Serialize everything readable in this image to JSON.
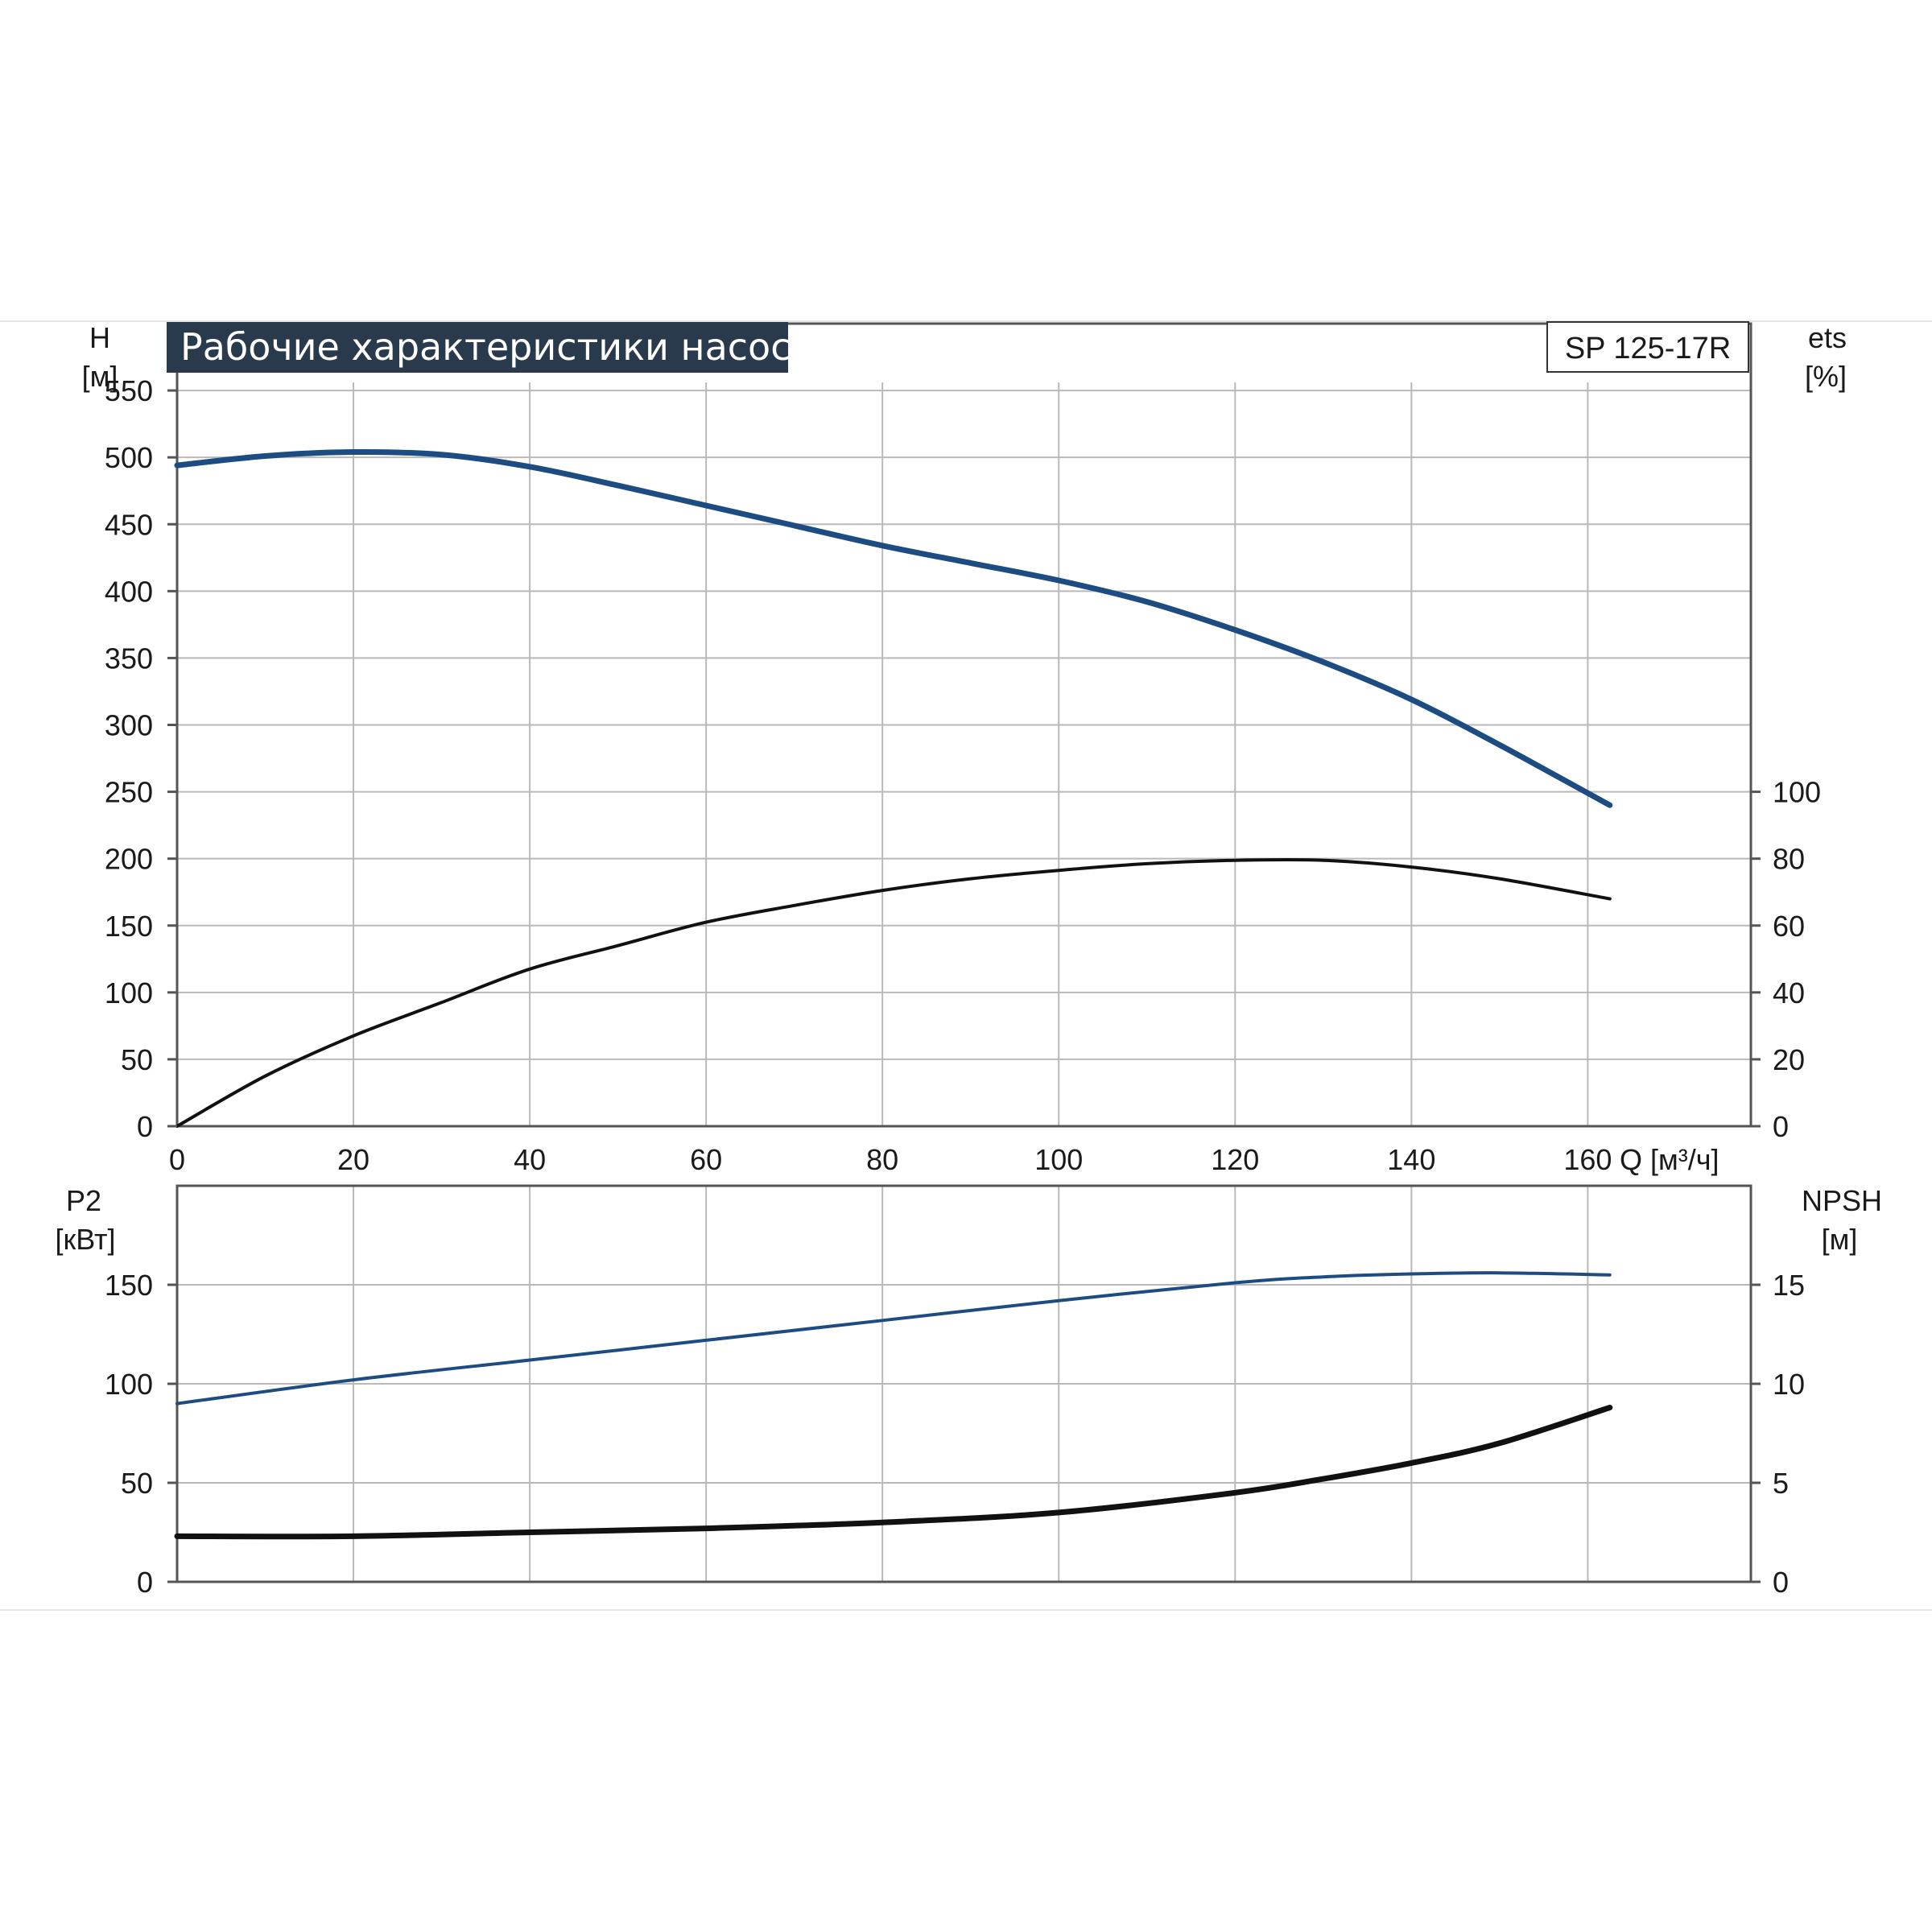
{
  "title": "Рабочие характеристики насоса",
  "model": "SP 125-17R",
  "chart_data": [
    {
      "type": "line",
      "x_label": "Q [м³/ч]",
      "x_ticks": [
        "0",
        "20",
        "40",
        "60",
        "80",
        "100",
        "120",
        "140",
        "160"
      ],
      "xlim": [
        0,
        178.5
      ],
      "y_label_left": [
        "H",
        "[м]"
      ],
      "y_ticks_left": [
        "0",
        "50",
        "100",
        "150",
        "200",
        "250",
        "300",
        "350",
        "400",
        "450",
        "500",
        "550"
      ],
      "ylim_left": [
        0,
        600
      ],
      "y_label_right": [
        "ets",
        "[%]"
      ],
      "y_ticks_right": [
        "0",
        "20",
        "40",
        "60",
        "80",
        "100"
      ],
      "ylim_right": [
        0,
        240
      ],
      "grid": true,
      "series": [
        {
          "axis": "left",
          "color": "#1d4c82",
          "x": [
            0,
            10,
            20,
            30,
            40,
            50,
            60,
            70,
            80,
            90,
            100,
            110,
            120,
            130,
            140,
            150,
            162.5
          ],
          "y": [
            494,
            501,
            504,
            502,
            493,
            479,
            464,
            449,
            434,
            421,
            408,
            392,
            371,
            347,
            319,
            285,
            240
          ]
        },
        {
          "axis": "right",
          "color": "#111111",
          "x": [
            0,
            10,
            20,
            30,
            40,
            50,
            60,
            70,
            80,
            90,
            100,
            110,
            120,
            130,
            140,
            150,
            162.5
          ],
          "y": [
            0,
            15,
            27,
            37,
            47,
            54,
            61,
            66,
            70.5,
            74,
            76.5,
            78.5,
            79.5,
            79.5,
            77.5,
            74,
            68
          ]
        }
      ]
    },
    {
      "type": "line",
      "x_ticks": [
        "0",
        "20",
        "40",
        "60",
        "80",
        "100",
        "120",
        "140",
        "160"
      ],
      "xlim": [
        0,
        178.5
      ],
      "y_label_left": [
        "P2",
        "[кВт]"
      ],
      "y_ticks_left": [
        "0",
        "50",
        "100",
        "150"
      ],
      "ylim_left": [
        0,
        200
      ],
      "y_label_right": [
        "NPSH",
        "[м]"
      ],
      "y_ticks_right": [
        "0",
        "5",
        "10",
        "15"
      ],
      "ylim_right": [
        0,
        20
      ],
      "grid": true,
      "series": [
        {
          "axis": "left",
          "color": "#1d4c82",
          "x": [
            0,
            20,
            40,
            60,
            80,
            100,
            120,
            130,
            140,
            150,
            162.5
          ],
          "y": [
            90,
            102,
            112,
            122,
            132,
            142,
            151,
            154,
            155.5,
            156,
            155
          ]
        },
        {
          "axis": "right",
          "color": "#111111",
          "x": [
            0,
            20,
            40,
            60,
            80,
            100,
            120,
            130,
            140,
            150,
            162.5
          ],
          "y": [
            2.3,
            2.3,
            2.5,
            2.7,
            3.0,
            3.5,
            4.5,
            5.2,
            6.0,
            7.0,
            8.8
          ]
        }
      ]
    }
  ]
}
